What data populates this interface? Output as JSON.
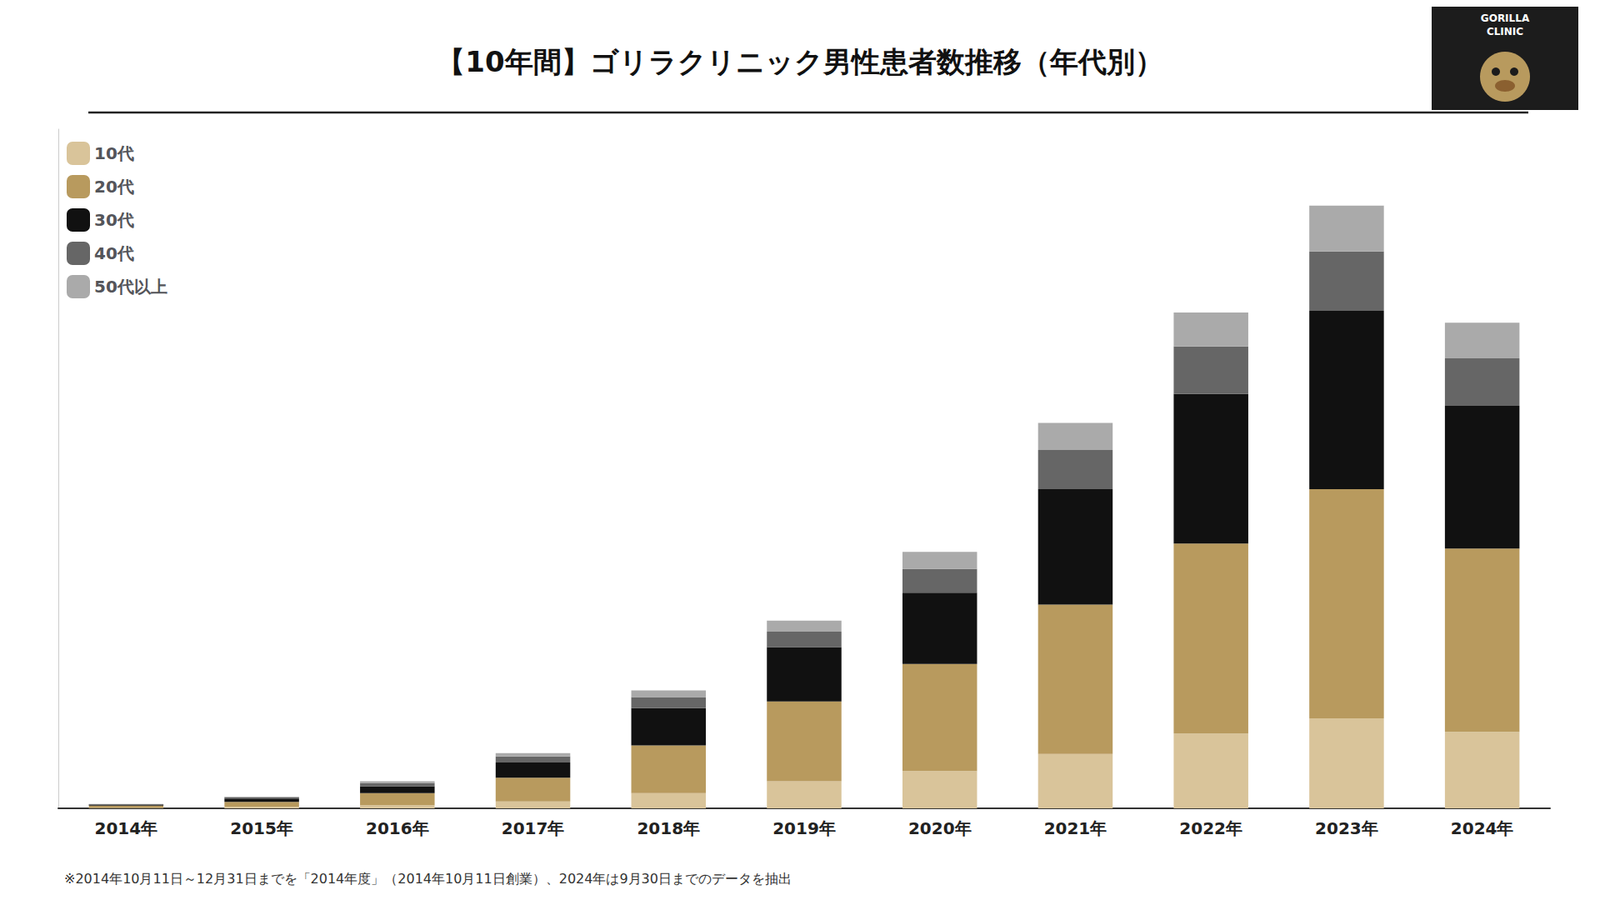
{
  "chart_data": {
    "type": "bar",
    "title": "【10年間】ゴリラクリニック男性患者数推移（年代別）",
    "categories": [
      "2014年",
      "2015年",
      "2016年",
      "2017年",
      "2018年",
      "2019年",
      "2020年",
      "2021年",
      "2022年",
      "2023年",
      "2024年"
    ],
    "series": [
      {
        "name": "10代",
        "color": "#D9C49A",
        "values": [
          0.4,
          0.8,
          2.0,
          4.0,
          9.0,
          16.0,
          22.0,
          32.0,
          44.0,
          53.0,
          45.0
        ]
      },
      {
        "name": "20代",
        "color": "#B89A5E",
        "values": [
          1.2,
          3.0,
          7.0,
          14.0,
          28.0,
          47.0,
          63.0,
          88.0,
          112.0,
          135.0,
          108.0
        ]
      },
      {
        "name": "30代",
        "color": "#111111",
        "values": [
          0.6,
          2.0,
          4.0,
          9.0,
          22.0,
          32.0,
          42.0,
          68.0,
          88.0,
          105.0,
          84.0
        ]
      },
      {
        "name": "40代",
        "color": "#666666",
        "values": [
          0.3,
          0.7,
          2.0,
          3.5,
          6.5,
          9.0,
          14.0,
          23.0,
          28.0,
          35.0,
          28.0
        ]
      },
      {
        "name": "50代以上",
        "color": "#AAAAAA",
        "values": [
          0.1,
          0.4,
          1.0,
          2.0,
          4.0,
          6.5,
          10.0,
          16.0,
          20.0,
          27.0,
          21.0
        ]
      }
    ],
    "stacked": true,
    "ylim": [
      0,
      400
    ],
    "grid": false,
    "legend": "upper left",
    "tick_labels": "x",
    "annotations": [
      "※2014年10月11日～12月31日までを「2014年度」（2014年10月11日創業）、2024年は9月30日までのデータを抽出",
      "GORILLA",
      "CLINIC"
    ]
  }
}
